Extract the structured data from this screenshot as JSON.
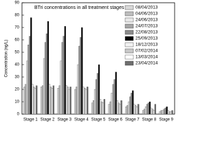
{
  "chart_data": {
    "type": "bar",
    "title": "BTri concentrations in all treatment stages",
    "y_label": "Concentration (ng/L)",
    "categories": [
      "Stage 1",
      "Stage 2",
      "Stage 3",
      "Stage 4",
      "Stage 5",
      "Stage 6",
      "Stage 7",
      "Stage 8",
      "Stage 9"
    ],
    "series": [
      {
        "name": "08/04/2013",
        "color": "#d9d9d9",
        "values": [
          22,
          22,
          21,
          20,
          9,
          8,
          6,
          3,
          2
        ]
      },
      {
        "name": "04/06/2013",
        "color": "#bdbdbd",
        "values": [
          24,
          23,
          23,
          22,
          11,
          10,
          7,
          4,
          3
        ]
      },
      {
        "name": "24/06/2013",
        "color": "#e8e8e8",
        "values": [
          43,
          45,
          43,
          40,
          20,
          17,
          10,
          6,
          3
        ]
      },
      {
        "name": "24/07/2013",
        "color": "#a6a6a6",
        "values": [
          56,
          58,
          58,
          55,
          28,
          24,
          14,
          8,
          4
        ]
      },
      {
        "name": "22/08/2013",
        "color": "#8c8c8c",
        "values": [
          63,
          65,
          63,
          62,
          33,
          28,
          17,
          9,
          5
        ]
      },
      {
        "name": "25/09/2013",
        "color": "#000000",
        "values": [
          78,
          75,
          71,
          70,
          40,
          34,
          19,
          10,
          6
        ]
      },
      {
        "name": "18/12/2013",
        "color": "#f2f2f2",
        "values": [
          24,
          24,
          23,
          22,
          12,
          11,
          8,
          5,
          3
        ]
      },
      {
        "name": "07/02/2014",
        "color": "#c8c8c8",
        "values": [
          22,
          22,
          22,
          21,
          10,
          9,
          7,
          4,
          2
        ]
      },
      {
        "name": "13/03/2014",
        "color": "#ffffff",
        "values": [
          21,
          21,
          20,
          20,
          9,
          8,
          6,
          3,
          2
        ]
      },
      {
        "name": "23/04/2014",
        "color": "#6e6e6e",
        "values": [
          23,
          23,
          22,
          22,
          12,
          11,
          8,
          8,
          3
        ]
      }
    ],
    "ylim": [
      0,
      90
    ],
    "yticks": [
      0,
      10,
      20,
      30,
      40,
      50,
      60,
      70,
      80,
      90
    ],
    "legend": "top-right"
  }
}
